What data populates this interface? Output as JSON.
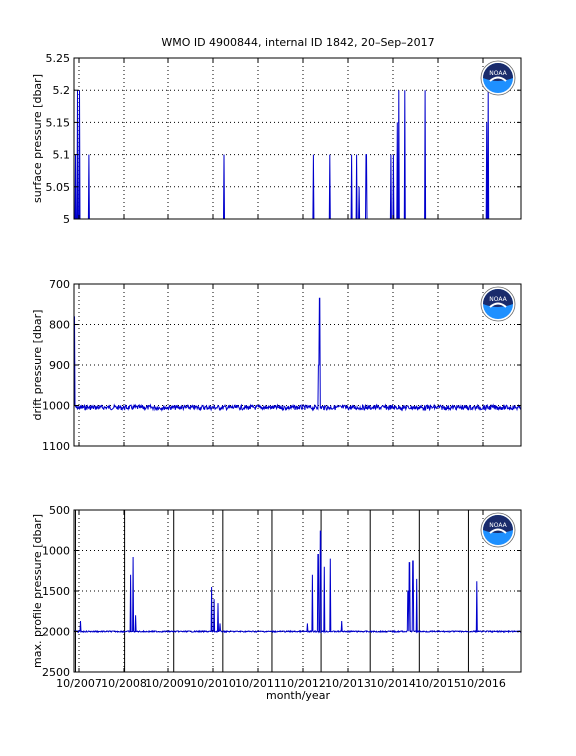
{
  "title": "WMO ID 4900844, internal ID 1842, 20–Sep–2017",
  "xlabel": "month/year",
  "x_tick_labels": [
    "10/2007",
    "10/2008",
    "10/2009",
    "10/2010",
    "10/2011",
    "10/2012",
    "10/2013",
    "10/2014",
    "10/2015",
    "10/2016"
  ],
  "logo_text": "NOAA",
  "colors": {
    "series": "#0000cc",
    "logo_outer": "#1a2b6b",
    "logo_inner": "#1e90ff"
  },
  "chart_data": [
    {
      "type": "line",
      "ylabel": "surface pressure [dbar]",
      "ylim": [
        5,
        5.25
      ],
      "y_reversed": false,
      "yticks": [
        5,
        5.05,
        5.1,
        5.15,
        5.2,
        5.25
      ],
      "ytick_labels": [
        "5",
        "5.05",
        "5.1",
        "5.15",
        "5.2",
        "5.25"
      ],
      "grid": true,
      "baseline": 5,
      "spikes": [
        {
          "x": 2007.78,
          "y": 5.1
        },
        {
          "x": 2007.82,
          "y": 5.2
        },
        {
          "x": 2007.86,
          "y": 5.2
        },
        {
          "x": 2008.05,
          "y": 5.1
        },
        {
          "x": 2010.8,
          "y": 5.1
        },
        {
          "x": 2012.62,
          "y": 5.1
        },
        {
          "x": 2012.96,
          "y": 5.1
        },
        {
          "x": 2013.4,
          "y": 5.1
        },
        {
          "x": 2013.5,
          "y": 5.1
        },
        {
          "x": 2013.55,
          "y": 5.05
        },
        {
          "x": 2013.7,
          "y": 5.1
        },
        {
          "x": 2014.2,
          "y": 5.1
        },
        {
          "x": 2014.25,
          "y": 5.1
        },
        {
          "x": 2014.33,
          "y": 5.15
        },
        {
          "x": 2014.36,
          "y": 5.2
        },
        {
          "x": 2014.48,
          "y": 5.2
        },
        {
          "x": 2014.9,
          "y": 5.2
        },
        {
          "x": 2016.15,
          "y": 5.15
        },
        {
          "x": 2016.18,
          "y": 5.2
        }
      ],
      "series": [
        {
          "values": []
        }
      ]
    },
    {
      "type": "line",
      "ylabel": "drift pressure [dbar]",
      "ylim": [
        700,
        1100
      ],
      "y_reversed": true,
      "yticks": [
        700,
        800,
        900,
        1000,
        1100
      ],
      "ytick_labels": [
        "700",
        "800",
        "900",
        "1000",
        "1100"
      ],
      "grid": true,
      "baseline": 1005,
      "noise": 6,
      "spikes": [
        {
          "x": 2007.76,
          "y": 780
        },
        {
          "x": 2012.75,
          "y": 735
        },
        {
          "x": 2012.73,
          "y": 900
        }
      ],
      "series": [
        {
          "values": []
        }
      ]
    },
    {
      "type": "line",
      "ylabel": "max. profile pressure [dbar]",
      "ylim": [
        500,
        2500
      ],
      "y_reversed": true,
      "yticks": [
        500,
        1000,
        1500,
        2000,
        2500
      ],
      "ytick_labels": [
        "500",
        "1000",
        "1500",
        "2000",
        "2500"
      ],
      "grid": true,
      "baseline": 2000,
      "noise": 8,
      "vertical_markers": [
        2007.78,
        2008.78,
        2009.78,
        2010.78,
        2011.78,
        2012.78,
        2013.78,
        2014.78,
        2015.78
      ],
      "spikes": [
        {
          "x": 2007.88,
          "y": 1870
        },
        {
          "x": 2008.9,
          "y": 1300
        },
        {
          "x": 2008.95,
          "y": 1080
        },
        {
          "x": 2009.0,
          "y": 1800
        },
        {
          "x": 2010.55,
          "y": 1450
        },
        {
          "x": 2010.6,
          "y": 1600
        },
        {
          "x": 2010.68,
          "y": 1650
        },
        {
          "x": 2010.72,
          "y": 1900
        },
        {
          "x": 2012.5,
          "y": 1900
        },
        {
          "x": 2012.6,
          "y": 1300
        },
        {
          "x": 2012.72,
          "y": 1050
        },
        {
          "x": 2012.77,
          "y": 760
        },
        {
          "x": 2012.85,
          "y": 1200
        },
        {
          "x": 2012.97,
          "y": 1100
        },
        {
          "x": 2013.2,
          "y": 1870
        },
        {
          "x": 2014.55,
          "y": 1500
        },
        {
          "x": 2014.58,
          "y": 1150
        },
        {
          "x": 2014.65,
          "y": 1130
        },
        {
          "x": 2014.73,
          "y": 1350
        },
        {
          "x": 2015.95,
          "y": 1380
        }
      ],
      "series": [
        {
          "values": []
        }
      ]
    }
  ]
}
